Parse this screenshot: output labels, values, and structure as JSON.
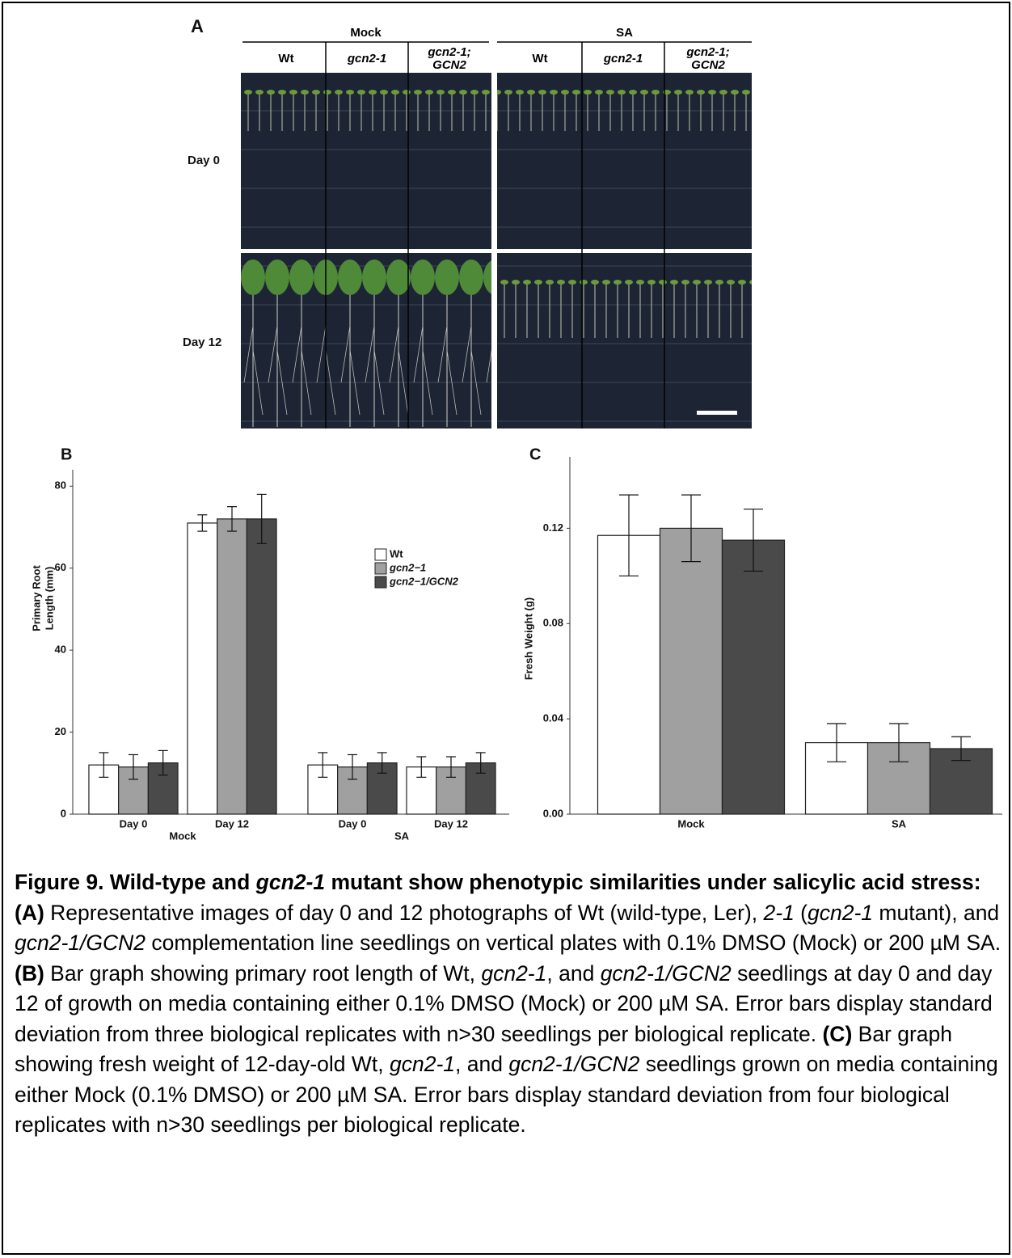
{
  "panel_a": {
    "label": "A",
    "groups": [
      {
        "name": "Mock",
        "columns": [
          "Wt",
          "gcn2-1",
          "gcn2-1; GCN2"
        ]
      },
      {
        "name": "SA",
        "columns": [
          "Wt",
          "gcn2-1",
          "gcn2-1; GCN2"
        ]
      }
    ],
    "rows": [
      "Day 0",
      "Day 12"
    ]
  },
  "chart_data": [
    {
      "type": "bar",
      "panel_label": "B",
      "ylabel": [
        "Primary Root",
        "Length (mm)"
      ],
      "groups": [
        {
          "label": "Mock",
          "categories": [
            "Day 0",
            "Day 12"
          ]
        },
        {
          "label": "SA",
          "categories": [
            "Day 0",
            "Day 12"
          ]
        }
      ],
      "series": [
        {
          "name": "Wt",
          "color": "#ffffff",
          "values": [
            12,
            71,
            12,
            11.5
          ],
          "errors": [
            3,
            2,
            3,
            2.5
          ]
        },
        {
          "name": "gcn2−1",
          "color": "#a0a0a0",
          "values": [
            11.5,
            72,
            11.5,
            11.5
          ],
          "errors": [
            3,
            3,
            3,
            2.5
          ]
        },
        {
          "name": "gcn2−1/GCN2",
          "color": "#4a4a4a",
          "values": [
            12.5,
            72,
            12.5,
            12.5
          ],
          "errors": [
            3,
            6,
            2.5,
            2.5
          ]
        }
      ],
      "ylim": [
        0,
        84
      ],
      "yticks": [
        0,
        20,
        40,
        60,
        80
      ],
      "legend": "center right"
    },
    {
      "type": "bar",
      "panel_label": "C",
      "ylabel": [
        "Fresh Weight (g)"
      ],
      "categories": [
        "Mock",
        "SA"
      ],
      "series": [
        {
          "color": "#ffffff",
          "values": [
            0.117,
            0.03
          ],
          "errors": [
            0.017,
            0.008
          ]
        },
        {
          "color": "#a0a0a0",
          "values": [
            0.12,
            0.03
          ],
          "errors": [
            0.014,
            0.008
          ]
        },
        {
          "color": "#4a4a4a",
          "values": [
            0.115,
            0.0275
          ],
          "errors": [
            0.013,
            0.005
          ]
        }
      ],
      "ylim": [
        0,
        0.15
      ],
      "yticks": [
        {
          "value": 0,
          "label": "0.00"
        },
        {
          "value": 0.04,
          "label": "0.04"
        },
        {
          "value": 0.08,
          "label": "0.08"
        },
        {
          "value": 0.12,
          "label": "0.12"
        }
      ]
    }
  ],
  "caption": [
    {
      "text": "Figure 9. Wild-type and ",
      "style": "b"
    },
    {
      "text": "gcn2-1",
      "style": "bi"
    },
    {
      "text": " mutant show phenotypic similarities under salicylic acid stress: (A)",
      "style": "b"
    },
    {
      "text": " Representative images of day 0 and 12 photographs of Wt (wild-type, Ler), ",
      "style": "n"
    },
    {
      "text": "2-1",
      "style": "i"
    },
    {
      "text": " (",
      "style": "n"
    },
    {
      "text": "gcn2-1",
      "style": "i"
    },
    {
      "text": " mutant), and ",
      "style": "n"
    },
    {
      "text": "gcn2-1/GCN2",
      "style": "i"
    },
    {
      "text": " complementation line seedlings on vertical plates with 0.1% DMSO (Mock) or 200 µM SA. ",
      "style": "n"
    },
    {
      "text": "(B)",
      "style": "b"
    },
    {
      "text": " Bar graph showing primary root length of Wt, ",
      "style": "n"
    },
    {
      "text": "gcn2-1",
      "style": "i"
    },
    {
      "text": ", and ",
      "style": "n"
    },
    {
      "text": "gcn2-1/GCN2",
      "style": "i"
    },
    {
      "text": " seedlings at day 0 and day 12 of growth on media containing either 0.1% DMSO (Mock) or 200 µM SA. Error bars display standard deviation from three biological replicates with n>30 seedlings per biological replicate. ",
      "style": "n"
    },
    {
      "text": "(C)",
      "style": "b"
    },
    {
      "text": " Bar graph showing fresh weight of 12-day-old Wt, ",
      "style": "n"
    },
    {
      "text": "gcn2-1",
      "style": "i"
    },
    {
      "text": ", and ",
      "style": "n"
    },
    {
      "text": "gcn2-1/GCN2",
      "style": "i"
    },
    {
      "text": " seedlings grown on media containing either Mock (0.1% DMSO) or 200 µM SA. Error bars display standard deviation from four biological replicates with n>30 seedlings per biological replicate.",
      "style": "n"
    }
  ]
}
